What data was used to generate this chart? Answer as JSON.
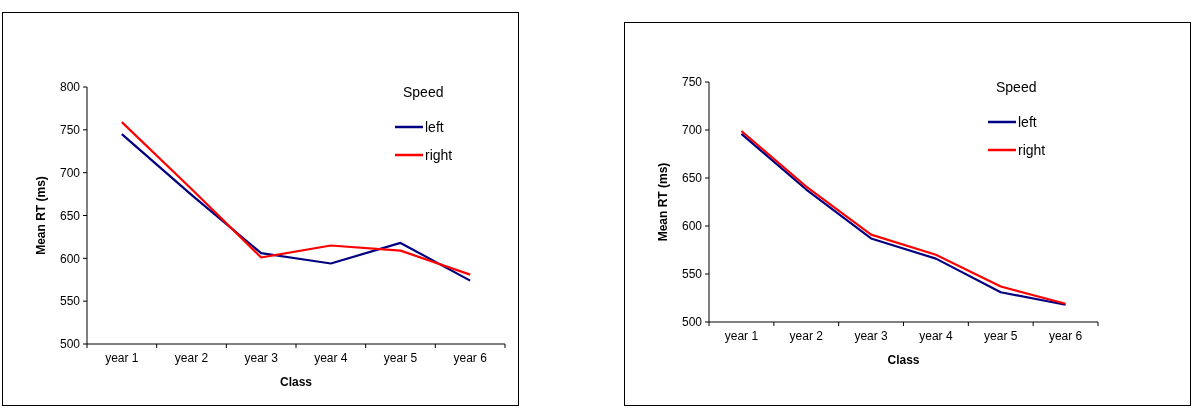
{
  "chart_data": [
    {
      "type": "line",
      "categories": [
        "year 1",
        "year 2",
        "year 3",
        "year 4",
        "year 5",
        "year 6"
      ],
      "xlabel": "Class",
      "ylabel": "Mean RT (ms)",
      "legend_title": "Speed",
      "legend": "top right",
      "grid": false,
      "ylim": [
        500,
        800
      ],
      "yticks": [
        500,
        550,
        600,
        650,
        700,
        750,
        800
      ],
      "series": [
        {
          "name": "left",
          "color": "#000080",
          "values": [
            745,
            674,
            606,
            594,
            618,
            574
          ]
        },
        {
          "name": "right",
          "color": "#ff0000",
          "values": [
            759,
            681,
            601,
            615,
            609,
            581
          ]
        }
      ]
    },
    {
      "type": "line",
      "categories": [
        "year 1",
        "year 2",
        "year 3",
        "year 4",
        "year 5",
        "year 6"
      ],
      "xlabel": "Class",
      "ylabel": "Mean RT (ms)",
      "legend_title": "Speed",
      "legend": "top right",
      "grid": false,
      "ylim": [
        500,
        750
      ],
      "yticks": [
        500,
        550,
        600,
        650,
        700,
        750
      ],
      "series": [
        {
          "name": "left",
          "color": "#000080",
          "values": [
            696,
            638,
            587,
            566,
            531,
            518
          ]
        },
        {
          "name": "right",
          "color": "#ff0000",
          "values": [
            699,
            641,
            591,
            570,
            537,
            519
          ]
        }
      ]
    }
  ]
}
